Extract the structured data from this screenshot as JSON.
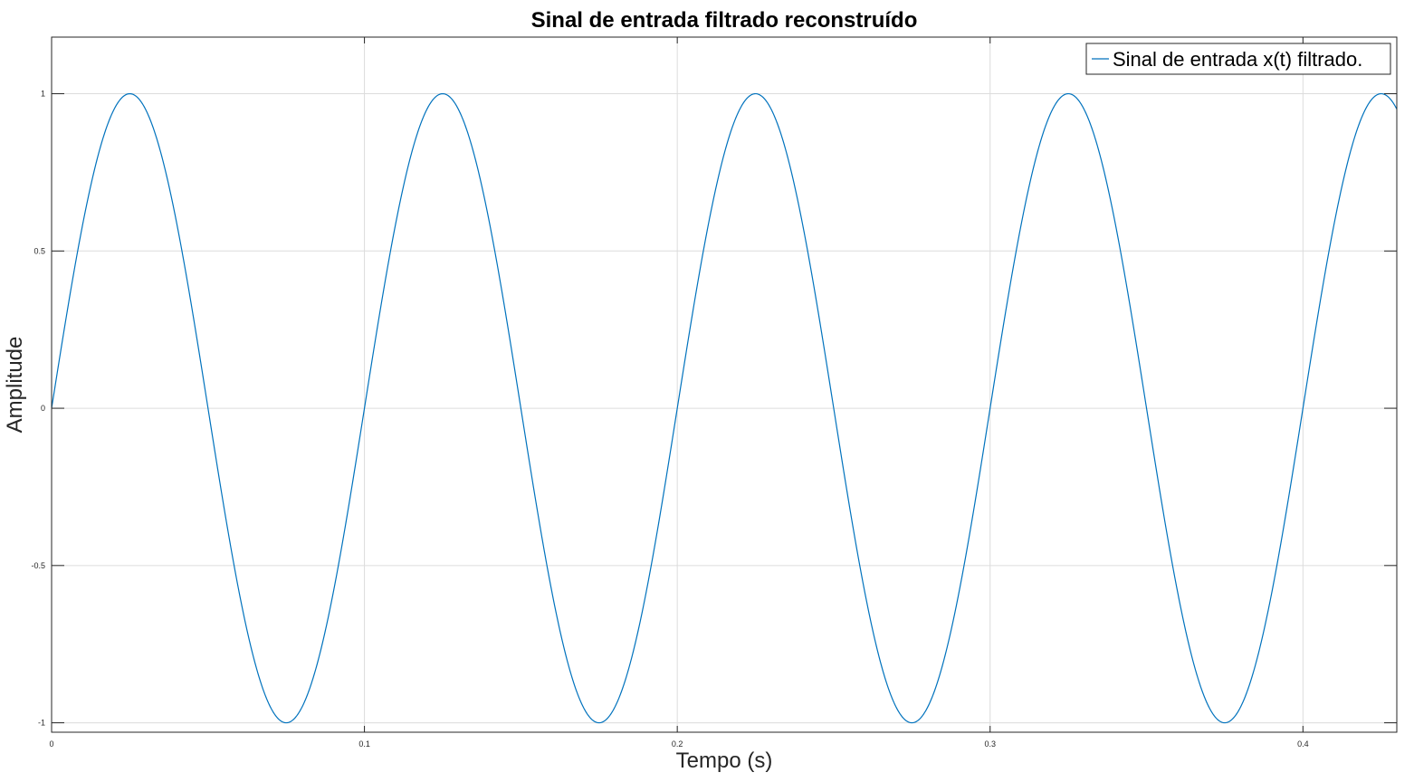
{
  "chart_data": {
    "type": "line",
    "title": "Sinal de entrada filtrado reconstruído",
    "xlabel": "Tempo (s)",
    "ylabel": "Amplitude",
    "xlim": [
      0,
      0.43
    ],
    "ylim": [
      -1.03,
      1.18
    ],
    "xticks": [
      0,
      0.1,
      0.2,
      0.3,
      0.4
    ],
    "xtick_labels": [
      "0",
      "0.1",
      "0.2",
      "0.3",
      "0.4"
    ],
    "yticks": [
      -1,
      -0.5,
      0,
      0.5,
      1
    ],
    "ytick_labels": [
      "-1",
      "-0.5",
      "0",
      "0.5",
      "1"
    ],
    "grid": true,
    "legend_position": "top-right",
    "series": [
      {
        "name": "Sinal de entrada x(t) filtrado.",
        "color": "#0072BD",
        "frequency_hz": 10,
        "amplitude": 1,
        "x": [
          0,
          0.005,
          0.01,
          0.015,
          0.02,
          0.025,
          0.03,
          0.035,
          0.04,
          0.045,
          0.05,
          0.055,
          0.06,
          0.065,
          0.07,
          0.075,
          0.08,
          0.085,
          0.09,
          0.095,
          0.1,
          0.105,
          0.11,
          0.115,
          0.12,
          0.125,
          0.13,
          0.135,
          0.14,
          0.145,
          0.15,
          0.155,
          0.16,
          0.165,
          0.17,
          0.175,
          0.18,
          0.185,
          0.19,
          0.195,
          0.2,
          0.205,
          0.21,
          0.215,
          0.22,
          0.225,
          0.23,
          0.235,
          0.24,
          0.245,
          0.25,
          0.255,
          0.26,
          0.265,
          0.27,
          0.275,
          0.28,
          0.285,
          0.29,
          0.295,
          0.3,
          0.305,
          0.31,
          0.315,
          0.32,
          0.325,
          0.33,
          0.335,
          0.34,
          0.345,
          0.35,
          0.355,
          0.36,
          0.365,
          0.37,
          0.375,
          0.38,
          0.385,
          0.39,
          0.395,
          0.4,
          0.405,
          0.41,
          0.415,
          0.42,
          0.425,
          0.43
        ],
        "y": [
          0.03,
          0.31,
          0.59,
          0.81,
          0.95,
          0.99,
          0.95,
          0.81,
          0.59,
          0.31,
          0.0,
          -0.31,
          -0.59,
          -0.81,
          -0.95,
          -1.0,
          -0.95,
          -0.81,
          -0.59,
          -0.31,
          0.0,
          0.31,
          0.59,
          0.81,
          0.95,
          1.0,
          0.95,
          0.81,
          0.59,
          0.31,
          0.0,
          -0.31,
          -0.59,
          -0.81,
          -0.95,
          -1.0,
          -0.95,
          -0.81,
          -0.59,
          -0.31,
          0.0,
          0.31,
          0.59,
          0.81,
          0.95,
          1.0,
          0.95,
          0.81,
          0.59,
          0.31,
          0.0,
          -0.31,
          -0.59,
          -0.81,
          -0.95,
          -1.0,
          -0.95,
          -0.81,
          -0.59,
          -0.31,
          0.0,
          0.31,
          0.59,
          0.81,
          0.95,
          1.0,
          0.95,
          0.81,
          0.59,
          0.31,
          0.0,
          -0.31,
          -0.59,
          -0.81,
          -0.95,
          -1.0,
          -0.95,
          -0.81,
          -0.59,
          -0.31,
          0.0,
          0.31,
          0.59,
          0.81,
          0.95,
          1.0,
          0.95
        ]
      }
    ]
  }
}
